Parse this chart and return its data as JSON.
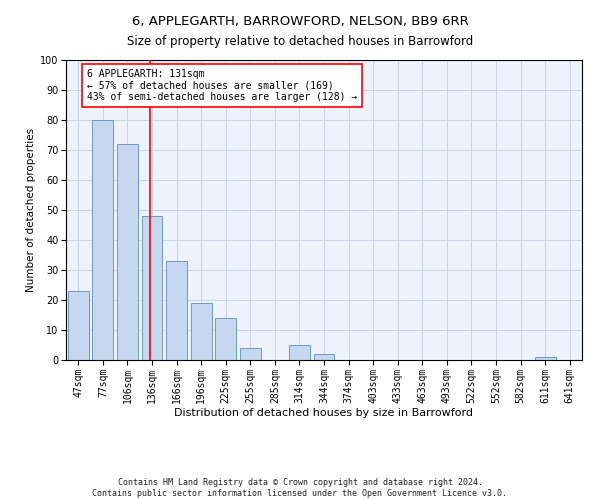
{
  "title1": "6, APPLEGARTH, BARROWFORD, NELSON, BB9 6RR",
  "title2": "Size of property relative to detached houses in Barrowford",
  "xlabel": "Distribution of detached houses by size in Barrowford",
  "ylabel": "Number of detached properties",
  "categories": [
    "47sqm",
    "77sqm",
    "106sqm",
    "136sqm",
    "166sqm",
    "196sqm",
    "225sqm",
    "255sqm",
    "285sqm",
    "314sqm",
    "344sqm",
    "374sqm",
    "403sqm",
    "433sqm",
    "463sqm",
    "493sqm",
    "522sqm",
    "552sqm",
    "582sqm",
    "611sqm",
    "641sqm"
  ],
  "values": [
    23,
    80,
    72,
    48,
    33,
    19,
    14,
    4,
    0,
    5,
    2,
    0,
    0,
    0,
    0,
    0,
    0,
    0,
    0,
    1,
    0
  ],
  "bar_color": "#c5d8f0",
  "bar_edge_color": "#5a8fc0",
  "vline_color": "red",
  "vline_x": 2.93,
  "annotation_text": "6 APPLEGARTH: 131sqm\n← 57% of detached houses are smaller (169)\n43% of semi-detached houses are larger (128) →",
  "annotation_box_color": "white",
  "annotation_box_edge": "red",
  "ylim": [
    0,
    100
  ],
  "yticks": [
    0,
    10,
    20,
    30,
    40,
    50,
    60,
    70,
    80,
    90,
    100
  ],
  "grid_color": "#c8d4e8",
  "bg_color": "#edf2fb",
  "footer": "Contains HM Land Registry data © Crown copyright and database right 2024.\nContains public sector information licensed under the Open Government Licence v3.0.",
  "title1_fontsize": 9.5,
  "title2_fontsize": 8.5,
  "xlabel_fontsize": 8,
  "ylabel_fontsize": 7.5,
  "tick_fontsize": 7,
  "annotation_fontsize": 7,
  "footer_fontsize": 6
}
